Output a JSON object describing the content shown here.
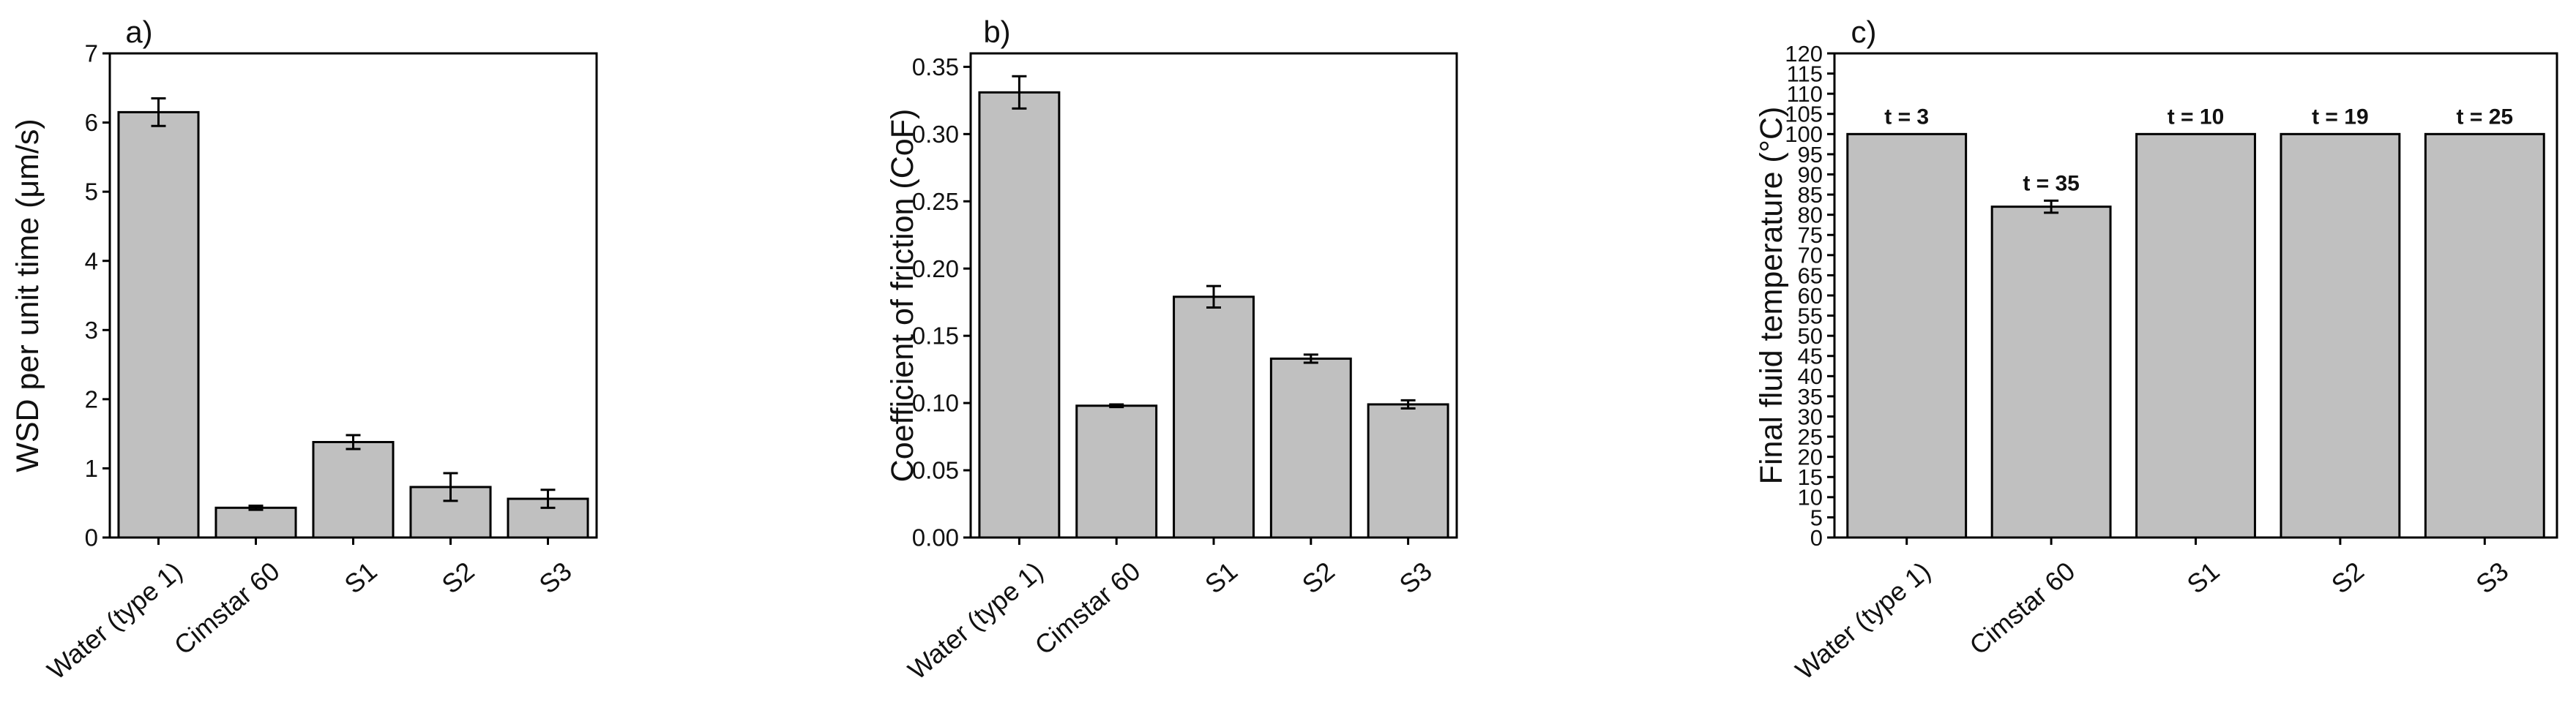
{
  "figure": {
    "bar_fill": "#c0c0c0",
    "bar_stroke": "#000000",
    "frame_color": "#000000"
  },
  "chart_data": [
    {
      "type": "bar",
      "panel_label": "a)",
      "title": "",
      "xlabel": "",
      "ylabel": "WSD per unit time (μm/s)",
      "categories": [
        "Water (type 1)",
        "Cimstar 60",
        "S1",
        "S2",
        "S3"
      ],
      "values": [
        6.15,
        0.43,
        1.38,
        0.73,
        0.56
      ],
      "errors": [
        0.2,
        0.03,
        0.1,
        0.2,
        0.13
      ],
      "ylim": [
        0,
        7
      ],
      "yticks": [
        0,
        1,
        2,
        3,
        4,
        5,
        6,
        7
      ],
      "ytick_labels": [
        "0",
        "1",
        "2",
        "3",
        "4",
        "5",
        "6",
        "7"
      ],
      "grid": false,
      "annotations": []
    },
    {
      "type": "bar",
      "panel_label": "b)",
      "title": "",
      "xlabel": "",
      "ylabel": "Coefficient of friction (CoF)",
      "categories": [
        "Water (type 1)",
        "Cimstar 60",
        "S1",
        "S2",
        "S3"
      ],
      "values": [
        0.331,
        0.098,
        0.179,
        0.133,
        0.099
      ],
      "errors": [
        0.012,
        0.001,
        0.008,
        0.003,
        0.003
      ],
      "ylim": [
        0,
        0.36
      ],
      "yticks": [
        0,
        0.05,
        0.1,
        0.15,
        0.2,
        0.25,
        0.3,
        0.35
      ],
      "ytick_labels": [
        "0.00",
        "0.05",
        "0.10",
        "0.15",
        "0.20",
        "0.25",
        "0.30",
        "0.35"
      ],
      "grid": false,
      "annotations": []
    },
    {
      "type": "bar",
      "panel_label": "c)",
      "title": "",
      "xlabel": "",
      "ylabel": "Final fluid temperature (°C)",
      "categories": [
        "Water (type 1)",
        "Cimstar 60",
        "S1",
        "S2",
        "S3"
      ],
      "values": [
        100,
        82,
        100,
        100,
        100
      ],
      "errors": [
        0,
        1.5,
        0,
        0,
        0
      ],
      "ylim": [
        0,
        120
      ],
      "yticks": [
        0,
        5,
        10,
        15,
        20,
        25,
        30,
        35,
        40,
        45,
        50,
        55,
        60,
        65,
        70,
        75,
        80,
        85,
        90,
        95,
        100,
        105,
        110,
        115,
        120
      ],
      "ytick_labels": [
        "0",
        "5",
        "10",
        "15",
        "20",
        "25",
        "30",
        "35",
        "40",
        "45",
        "50",
        "55",
        "60",
        "65",
        "70",
        "75",
        "80",
        "85",
        "90",
        "95",
        "100",
        "105",
        "110",
        "115",
        "120"
      ],
      "grid": false,
      "annotations": [
        "t = 3",
        "t = 35",
        "t = 10",
        "t = 19",
        "t = 25"
      ]
    }
  ]
}
